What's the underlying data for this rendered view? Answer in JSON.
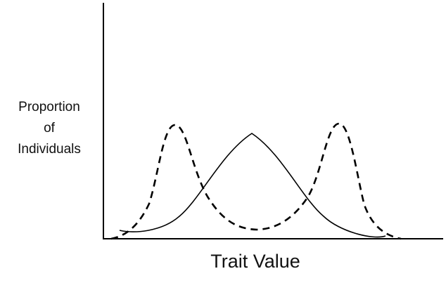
{
  "diagram": {
    "y_axis_label_lines": [
      "Proportion",
      "of",
      "Individuals"
    ],
    "x_axis_label": "Trait Value",
    "curves": [
      {
        "style": "solid",
        "shape": "single-peak"
      },
      {
        "style": "dashed",
        "shape": "two-peaks"
      }
    ],
    "colors": {
      "axis": "#000000",
      "curve": "#000000",
      "background": "#ffffff"
    }
  }
}
